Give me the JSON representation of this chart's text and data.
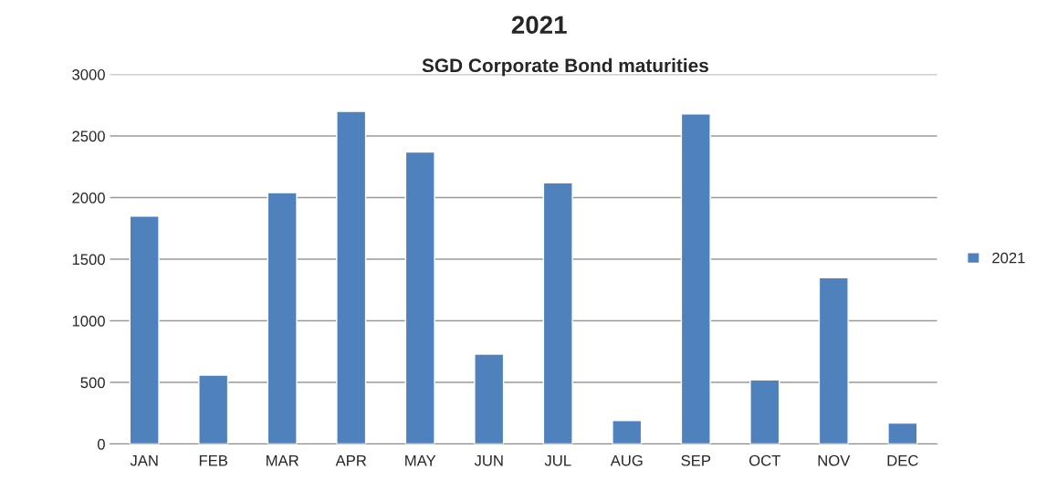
{
  "chart_data": {
    "type": "bar",
    "title": "2021",
    "subtitle": "SGD Corporate Bond maturities",
    "categories": [
      "JAN",
      "FEB",
      "MAR",
      "APR",
      "MAY",
      "JUN",
      "JUL",
      "AUG",
      "SEP",
      "OCT",
      "NOV",
      "DEC"
    ],
    "series": [
      {
        "name": "2021",
        "color": "#4f81bd",
        "values": [
          1850,
          560,
          2040,
          2700,
          2370,
          730,
          2120,
          190,
          2680,
          520,
          1350,
          170
        ]
      }
    ],
    "ylim": [
      0,
      3000
    ],
    "yticks": [
      0,
      500,
      1000,
      1500,
      2000,
      2500,
      3000
    ],
    "grid": "y",
    "legend": "center right"
  }
}
